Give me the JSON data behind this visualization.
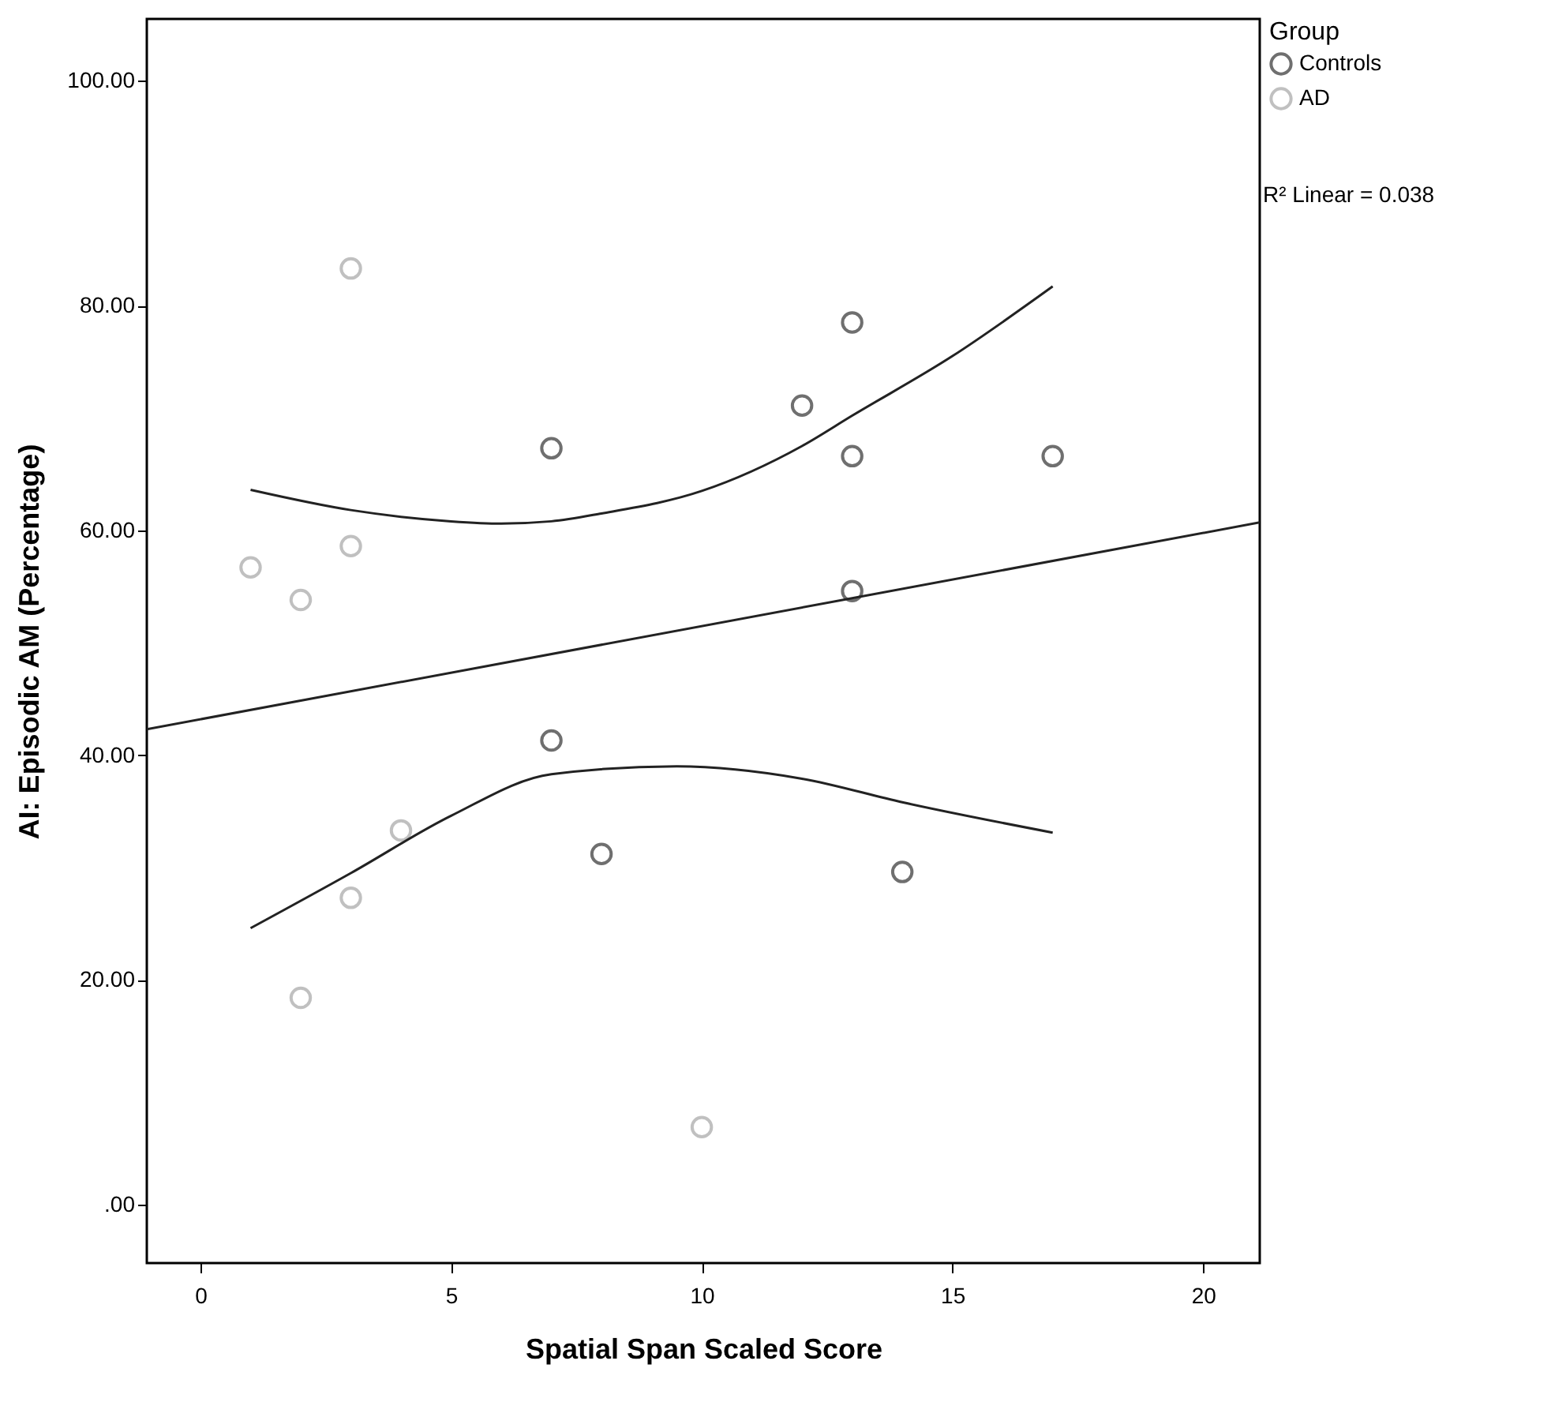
{
  "chart_data": {
    "type": "scatter",
    "xlabel": "Spatial Span Scaled Score",
    "ylabel": "AI: Episodic AM (Percentage)",
    "legend_title": "Group",
    "legend": "top right",
    "grid": false,
    "xlim": [
      -1.07,
      21.13
    ],
    "ylim": [
      -5.2,
      105.5
    ],
    "xticks": [
      0,
      5,
      10,
      15,
      20
    ],
    "yticks": [
      {
        "value": 0,
        "label": ".00"
      },
      {
        "value": 20,
        "label": "20.00"
      },
      {
        "value": 40,
        "label": "40.00"
      },
      {
        "value": 60,
        "label": "60.00"
      },
      {
        "value": 80,
        "label": "80.00"
      },
      {
        "value": 100,
        "label": "100.00"
      }
    ],
    "annotations": [
      "R² Linear = 0.038"
    ],
    "series": [
      {
        "name": "Controls",
        "color": "#333333",
        "marker": "circle",
        "x": [
          7,
          13,
          12,
          13,
          17,
          13,
          7,
          8,
          14
        ],
        "values": [
          67.3,
          78.5,
          71.1,
          66.6,
          66.6,
          54.6,
          41.3,
          31.2,
          29.6
        ]
      },
      {
        "name": "AD",
        "color": "#a6a6a6",
        "marker": "circle",
        "x": [
          3,
          1,
          2,
          3,
          4,
          3,
          2,
          10
        ],
        "values": [
          83.3,
          56.7,
          53.8,
          58.6,
          33.3,
          27.3,
          18.4,
          6.9
        ]
      },
      {
        "type": "line",
        "color": "#222222",
        "marker": "none",
        "x": [
          -1.07,
          21.13
        ],
        "values": [
          42.3,
          60.7
        ]
      },
      {
        "type": "line",
        "color": "#222222",
        "marker": "none",
        "x": [
          1,
          3,
          5,
          6,
          7,
          8,
          10,
          12,
          13,
          15,
          17
        ],
        "values": [
          63.6,
          61.8,
          60.8,
          60.6,
          60.8,
          61.5,
          63.5,
          67.5,
          70.2,
          75.5,
          81.7
        ]
      },
      {
        "type": "line",
        "color": "#222222",
        "marker": "none",
        "x": [
          1,
          3,
          5,
          7,
          9.5,
          12,
          14,
          17
        ],
        "values": [
          24.6,
          29.5,
          34.6,
          38.3,
          39.0,
          37.9,
          35.8,
          33.1
        ]
      }
    ]
  }
}
